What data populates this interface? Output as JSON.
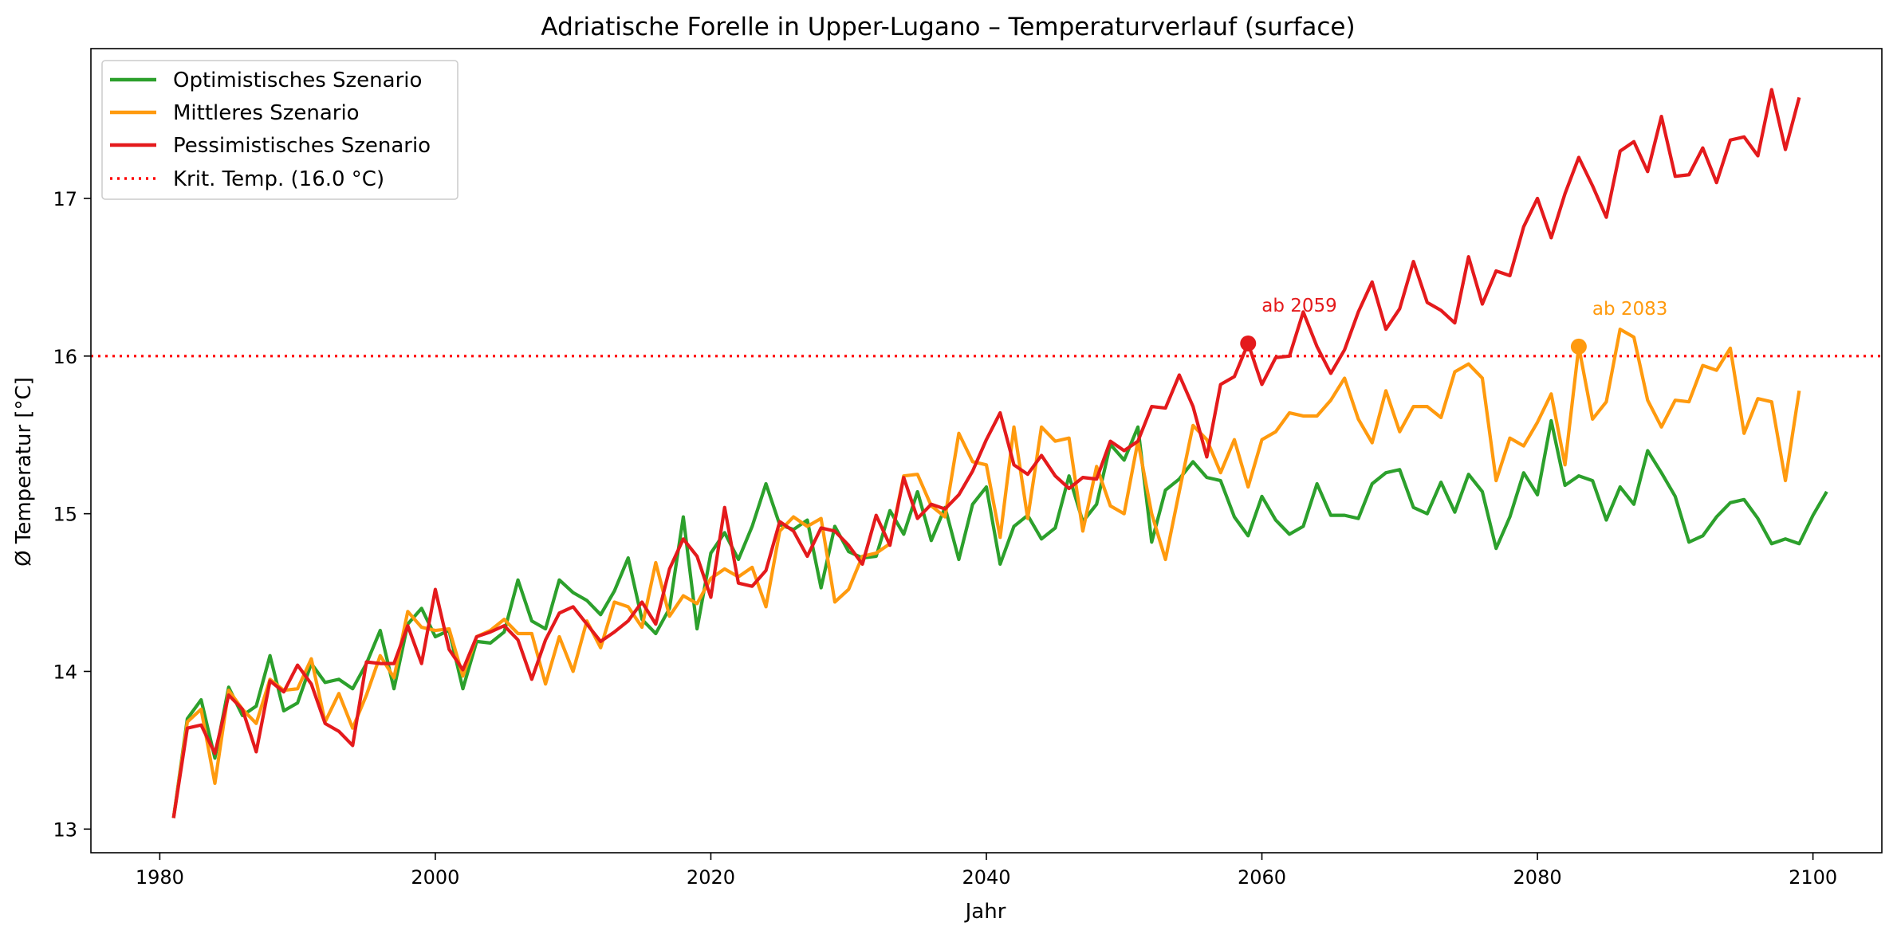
{
  "chart_data": {
    "type": "line",
    "title": "Adriatische Forelle in Upper-Lugano – Temperaturverlauf (surface)",
    "xlabel": "Jahr",
    "ylabel": "Ø Temperatur [°C]",
    "xlim": [
      1975,
      2105
    ],
    "ylim": [
      12.85,
      17.95
    ],
    "xticks": [
      1980,
      2000,
      2020,
      2040,
      2060,
      2080,
      2100
    ],
    "yticks": [
      13,
      14,
      15,
      16,
      17
    ],
    "grid": false,
    "legend_position": "top-left",
    "x_start": 1981,
    "series": [
      {
        "name": "Optimistisches Szenario",
        "color": "#2ca02c",
        "values": [
          13.07,
          13.7,
          13.82,
          13.45,
          13.9,
          13.72,
          13.78,
          14.1,
          13.75,
          13.8,
          14.05,
          13.93,
          13.95,
          13.89,
          14.05,
          14.26,
          13.89,
          14.3,
          14.4,
          14.22,
          14.26,
          13.89,
          14.19,
          14.18,
          14.25,
          14.58,
          14.32,
          14.27,
          14.58,
          14.5,
          14.45,
          14.36,
          14.51,
          14.72,
          14.33,
          14.24,
          14.4,
          14.98,
          14.27,
          14.75,
          14.88,
          14.71,
          14.92,
          15.19,
          14.93,
          14.9,
          14.96,
          14.53,
          14.92,
          14.76,
          14.72,
          14.73,
          15.02,
          14.87,
          15.14,
          14.83,
          15.04,
          14.71,
          15.06,
          15.17,
          14.68,
          14.92,
          14.99,
          14.84,
          14.91,
          15.24,
          14.95,
          15.06,
          15.44,
          15.34,
          15.55,
          14.82,
          15.15,
          15.22,
          15.33,
          15.23,
          15.21,
          14.98,
          14.86,
          15.11,
          14.96,
          14.87,
          14.92,
          15.19,
          14.99,
          14.99,
          14.97,
          15.19,
          15.26,
          15.28,
          15.04,
          15.0,
          15.2,
          15.01,
          15.25,
          15.14,
          14.78,
          14.98,
          15.26,
          15.12,
          15.59,
          15.18,
          15.24,
          15.21,
          14.96,
          15.17,
          15.06,
          15.4,
          15.26,
          15.11,
          14.82,
          14.86,
          14.98,
          15.07,
          15.09,
          14.97,
          14.81,
          14.84,
          14.81,
          14.99,
          15.14
        ]
      },
      {
        "name": "Mittleres Szenario",
        "color": "#ff9a0e",
        "values": [
          13.07,
          13.68,
          13.76,
          13.29,
          13.88,
          13.76,
          13.67,
          13.95,
          13.88,
          13.89,
          14.08,
          13.68,
          13.86,
          13.64,
          13.85,
          14.1,
          13.96,
          14.38,
          14.28,
          14.26,
          14.27,
          13.97,
          14.22,
          14.26,
          14.33,
          14.24,
          14.24,
          13.92,
          14.22,
          14.0,
          14.32,
          14.15,
          14.44,
          14.41,
          14.28,
          14.69,
          14.35,
          14.48,
          14.43,
          14.59,
          14.65,
          14.6,
          14.66,
          14.41,
          14.89,
          14.98,
          14.92,
          14.97,
          14.44,
          14.52,
          14.73,
          14.75,
          14.81,
          15.24,
          15.25,
          15.05,
          14.98,
          15.51,
          15.33,
          15.31,
          14.85,
          15.55,
          14.97,
          15.55,
          15.46,
          15.48,
          14.89,
          15.3,
          15.05,
          15.0,
          15.46,
          15.0,
          14.71,
          15.14,
          15.56,
          15.47,
          15.26,
          15.47,
          15.17,
          15.47,
          15.52,
          15.64,
          15.62,
          15.62,
          15.72,
          15.86,
          15.6,
          15.45,
          15.78,
          15.52,
          15.68,
          15.68,
          15.61,
          15.9,
          15.95,
          15.86,
          15.21,
          15.48,
          15.43,
          15.58,
          15.76,
          15.31,
          16.06,
          15.6,
          15.71,
          16.17,
          16.12,
          15.72,
          15.55,
          15.72,
          15.71,
          15.94,
          15.91,
          16.05,
          15.51,
          15.73,
          15.71,
          15.21,
          15.78
        ]
      },
      {
        "name": "Pessimistisches Szenario",
        "color": "#e41a1c",
        "values": [
          13.07,
          13.64,
          13.66,
          13.48,
          13.85,
          13.76,
          13.49,
          13.94,
          13.87,
          14.04,
          13.92,
          13.67,
          13.62,
          13.53,
          14.06,
          14.05,
          14.05,
          14.29,
          14.05,
          14.52,
          14.14,
          14.01,
          14.22,
          14.25,
          14.29,
          14.2,
          13.95,
          14.2,
          14.37,
          14.41,
          14.3,
          14.19,
          14.25,
          14.32,
          14.44,
          14.3,
          14.65,
          14.84,
          14.73,
          14.47,
          15.04,
          14.56,
          14.54,
          14.64,
          14.95,
          14.89,
          14.73,
          14.91,
          14.89,
          14.8,
          14.68,
          14.99,
          14.8,
          15.23,
          14.97,
          15.06,
          15.03,
          15.12,
          15.27,
          15.47,
          15.64,
          15.31,
          15.25,
          15.37,
          15.24,
          15.16,
          15.23,
          15.22,
          15.46,
          15.4,
          15.46,
          15.68,
          15.67,
          15.88,
          15.68,
          15.36,
          15.82,
          15.87,
          16.08,
          15.82,
          15.99,
          16.0,
          16.28,
          16.06,
          15.89,
          16.04,
          16.28,
          16.47,
          16.17,
          16.3,
          16.6,
          16.34,
          16.29,
          16.21,
          16.63,
          16.33,
          16.54,
          16.51,
          16.82,
          17.0,
          16.75,
          17.03,
          17.26,
          17.08,
          16.88,
          17.3,
          17.36,
          17.17,
          17.52,
          17.14,
          17.15,
          17.32,
          17.1,
          17.37,
          17.39,
          17.27,
          17.69,
          17.31,
          17.64
        ]
      }
    ],
    "threshold": {
      "label": "Krit. Temp. (16.0 °C)",
      "value": 16.0,
      "color": "#ff0000"
    },
    "annotations": [
      {
        "text": "ab 2059",
        "x": 2059,
        "y": 16.08,
        "color": "#e41a1c"
      },
      {
        "text": "ab 2083",
        "x": 2083,
        "y": 16.06,
        "color": "#ff9a0e"
      }
    ]
  }
}
